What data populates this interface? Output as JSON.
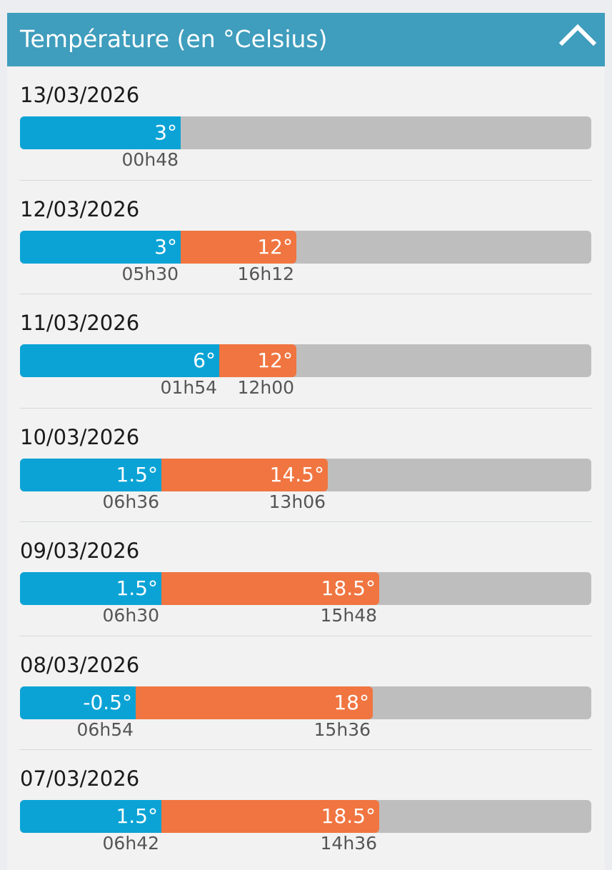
{
  "header": {
    "title": "Température (en °Celsius)",
    "collapse_icon": "chevron-up-icon"
  },
  "scale": {
    "min": -9.5,
    "max": 35
  },
  "colors": {
    "header": "#3f9dbd",
    "min_bar": "#0ba3d5",
    "max_bar": "#f07540",
    "track": "#bebebe"
  },
  "days": [
    {
      "date": "13/03/2026",
      "min_label": "3°",
      "min_value": 3,
      "min_time": "00h48",
      "max_label": "",
      "max_value": null,
      "max_time": ""
    },
    {
      "date": "12/03/2026",
      "min_label": "3°",
      "min_value": 3,
      "min_time": "05h30",
      "max_label": "12°",
      "max_value": 12,
      "max_time": "16h12"
    },
    {
      "date": "11/03/2026",
      "min_label": "6°",
      "min_value": 6,
      "min_time": "01h54",
      "max_label": "12°",
      "max_value": 12,
      "max_time": "12h00"
    },
    {
      "date": "10/03/2026",
      "min_label": "1.5°",
      "min_value": 1.5,
      "min_time": "06h36",
      "max_label": "14.5°",
      "max_value": 14.5,
      "max_time": "13h06"
    },
    {
      "date": "09/03/2026",
      "min_label": "1.5°",
      "min_value": 1.5,
      "min_time": "06h30",
      "max_label": "18.5°",
      "max_value": 18.5,
      "max_time": "15h48"
    },
    {
      "date": "08/03/2026",
      "min_label": "-0.5°",
      "min_value": -0.5,
      "min_time": "06h54",
      "max_label": "18°",
      "max_value": 18,
      "max_time": "15h36"
    },
    {
      "date": "07/03/2026",
      "min_label": "1.5°",
      "min_value": 1.5,
      "min_time": "06h42",
      "max_label": "18.5°",
      "max_value": 18.5,
      "max_time": "14h36"
    }
  ]
}
